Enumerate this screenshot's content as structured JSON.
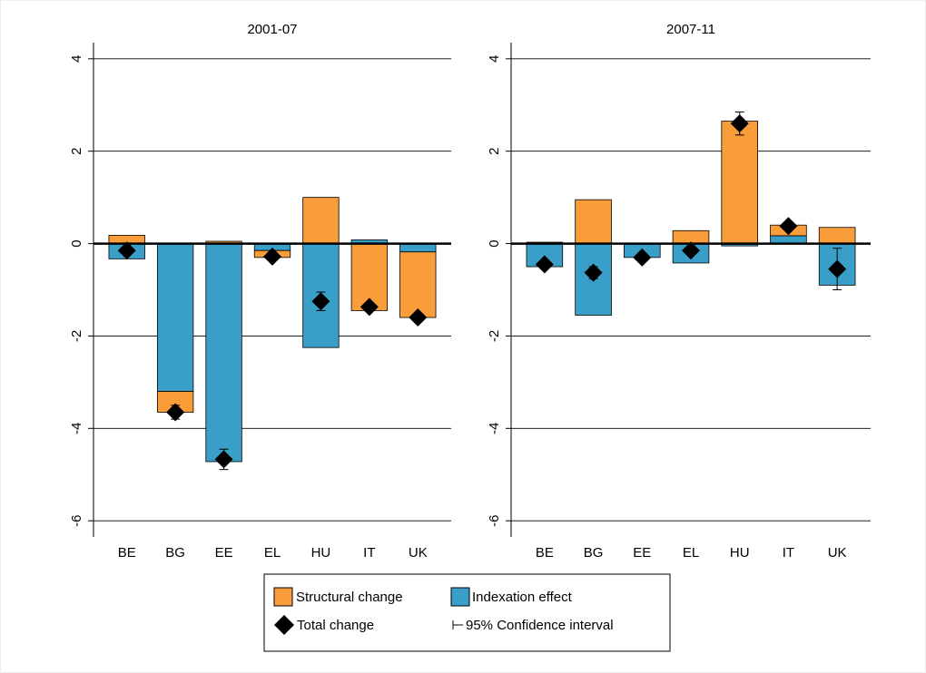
{
  "chart_data": [
    {
      "type": "bar",
      "title": "2001-07",
      "categories": [
        "BE",
        "BG",
        "EE",
        "EL",
        "HU",
        "IT",
        "UK"
      ],
      "series": [
        {
          "name": "Structural change",
          "color": "#f99c3a",
          "values": [
            0.18,
            -0.45,
            0.05,
            -0.15,
            1.0,
            -1.45,
            -1.42
          ]
        },
        {
          "name": "Indexation effect",
          "color": "#3a9fc8",
          "values": [
            -0.33,
            -3.2,
            -4.72,
            -0.15,
            -2.25,
            0.08,
            -0.18
          ]
        },
        {
          "name": "Total change",
          "color": "#000000",
          "values": [
            -0.15,
            -3.65,
            -4.67,
            -0.28,
            -1.25,
            -1.37,
            -1.6
          ],
          "errors": [
            0.05,
            0.15,
            0.22,
            0.05,
            0.2,
            0.05,
            0.05
          ],
          "error_name": "95% Confidence interval"
        }
      ],
      "ylim": [
        -6.35,
        4.35
      ],
      "yticks": [
        -6,
        -4,
        -2,
        0,
        2,
        4
      ],
      "grid": true
    },
    {
      "type": "bar",
      "title": "2007-11",
      "categories": [
        "BE",
        "BG",
        "EE",
        "EL",
        "HU",
        "IT",
        "UK"
      ],
      "series": [
        {
          "name": "Structural change",
          "color": "#f99c3a",
          "values": [
            0.03,
            0.95,
            0.0,
            0.28,
            2.65,
            0.23,
            0.35
          ]
        },
        {
          "name": "Indexation effect",
          "color": "#3a9fc8",
          "values": [
            -0.5,
            -1.55,
            -0.3,
            -0.42,
            -0.05,
            0.17,
            -0.9
          ]
        },
        {
          "name": "Total change",
          "color": "#000000",
          "values": [
            -0.45,
            -0.63,
            -0.3,
            -0.15,
            2.6,
            0.38,
            -0.55
          ],
          "errors": [
            0.05,
            0.13,
            0.05,
            0.05,
            0.25,
            0.05,
            0.45
          ],
          "error_name": "95% Confidence interval"
        }
      ],
      "ylim": [
        -6.35,
        4.35
      ],
      "yticks": [
        -6,
        -4,
        -2,
        0,
        2,
        4
      ],
      "grid": true
    }
  ]
}
